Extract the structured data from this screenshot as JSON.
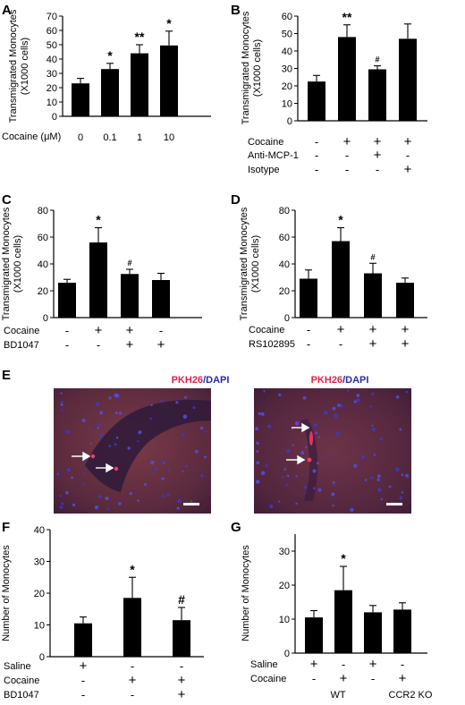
{
  "figure": {
    "panel_e": {
      "letter": "E",
      "stain_label_1": "PKH26",
      "stain_separator": "/",
      "stain_label_2": "DAPI",
      "colors": {
        "pkh26": "#e0204a",
        "dapi": "#2a2aa8"
      }
    }
  },
  "chart_data": [
    {
      "id": "A",
      "type": "bar",
      "letter": "A",
      "ylabel": "Transmigrated Monocytes",
      "ylabel2": "(X1000 cells)",
      "ylim": [
        0,
        70
      ],
      "yticks": [
        0,
        10,
        20,
        30,
        40,
        50,
        60,
        70
      ],
      "categories": [
        "0",
        "0.1",
        "1",
        "10"
      ],
      "values": [
        23,
        33,
        44,
        49.5
      ],
      "errors": [
        3.5,
        4,
        6,
        10
      ],
      "significance": [
        "",
        "*",
        "**",
        "*"
      ],
      "row_labels": [
        "Cocaine (μM)"
      ],
      "conditions": null
    },
    {
      "id": "B",
      "type": "bar",
      "letter": "B",
      "ylabel": "Transmigrated Monocytes",
      "ylabel2": "(X1000 cells)",
      "ylim": [
        0,
        60
      ],
      "yticks": [
        0,
        10,
        20,
        30,
        40,
        50,
        60
      ],
      "categories": [
        "1",
        "2",
        "3",
        "4"
      ],
      "values": [
        22.5,
        48,
        29.5,
        47
      ],
      "errors": [
        3.5,
        7,
        2,
        8.5
      ],
      "significance": [
        "",
        "**",
        "#",
        ""
      ],
      "row_labels": [
        "Cocaine",
        "Anti-MCP-1",
        "Isotype"
      ],
      "conditions": [
        [
          "-",
          "+",
          "+",
          "+"
        ],
        [
          "-",
          "-",
          "+",
          "-"
        ],
        [
          "-",
          "-",
          "-",
          "+"
        ]
      ]
    },
    {
      "id": "C",
      "type": "bar",
      "letter": "C",
      "ylabel": "Transmigrated Monocytes",
      "ylabel2": "(X1000 cells)",
      "ylim": [
        0,
        80
      ],
      "yticks": [
        0,
        20,
        40,
        60,
        80
      ],
      "categories": [
        "1",
        "2",
        "3",
        "4"
      ],
      "values": [
        26,
        56,
        32.5,
        28
      ],
      "errors": [
        2.5,
        11,
        3.5,
        5
      ],
      "significance": [
        "",
        "*",
        "#",
        ""
      ],
      "row_labels": [
        "Cocaine",
        "BD1047"
      ],
      "conditions": [
        [
          "-",
          "+",
          "+",
          "-"
        ],
        [
          "-",
          "-",
          "+",
          "+"
        ]
      ]
    },
    {
      "id": "D",
      "type": "bar",
      "letter": "D",
      "ylabel": "Transmigrated Monocytes",
      "ylabel2": "(X1000 cells)",
      "ylim": [
        0,
        80
      ],
      "yticks": [
        0,
        20,
        40,
        60,
        80
      ],
      "categories": [
        "1",
        "2",
        "3",
        "4"
      ],
      "values": [
        29,
        57,
        33,
        26
      ],
      "errors": [
        6.5,
        10,
        7.5,
        3.5
      ],
      "significance": [
        "",
        "*",
        "#",
        ""
      ],
      "row_labels": [
        "Cocaine",
        "RS102895"
      ],
      "conditions": [
        [
          "-",
          "+",
          "+",
          "+"
        ],
        [
          "-",
          "-",
          "+",
          "+"
        ]
      ]
    },
    {
      "id": "F",
      "type": "bar",
      "letter": "F",
      "ylabel": "Number of Monocytes",
      "ylabel2": "",
      "ylim": [
        0,
        40
      ],
      "yticks": [
        0,
        10,
        20,
        30,
        40
      ],
      "categories": [
        "1",
        "2",
        "3"
      ],
      "values": [
        10.5,
        18.5,
        11.5
      ],
      "errors": [
        2,
        6.5,
        4
      ],
      "significance": [
        "",
        "*",
        "#"
      ],
      "row_labels": [
        "Saline",
        "Cocaine",
        "BD1047"
      ],
      "conditions": [
        [
          "+",
          "-",
          "-"
        ],
        [
          "-",
          "+",
          "+"
        ],
        [
          "-",
          "-",
          "+"
        ]
      ]
    },
    {
      "id": "G",
      "type": "bar",
      "letter": "G",
      "ylabel": "Number of Monocytes",
      "ylabel2": "",
      "ylim": [
        0,
        35
      ],
      "yticks": [
        0,
        10,
        20,
        30
      ],
      "categories": [
        "1",
        "2",
        "3",
        "4"
      ],
      "values": [
        10.5,
        18.5,
        12,
        12.8
      ],
      "errors": [
        2,
        7,
        2,
        2
      ],
      "significance": [
        "",
        "*",
        "",
        ""
      ],
      "row_labels": [
        "Saline",
        "Cocaine"
      ],
      "conditions": [
        [
          "+",
          "-",
          "+",
          "-"
        ],
        [
          "-",
          "+",
          "-",
          "+"
        ]
      ],
      "group_labels": [
        "WT",
        "CCR2 KO"
      ]
    }
  ]
}
